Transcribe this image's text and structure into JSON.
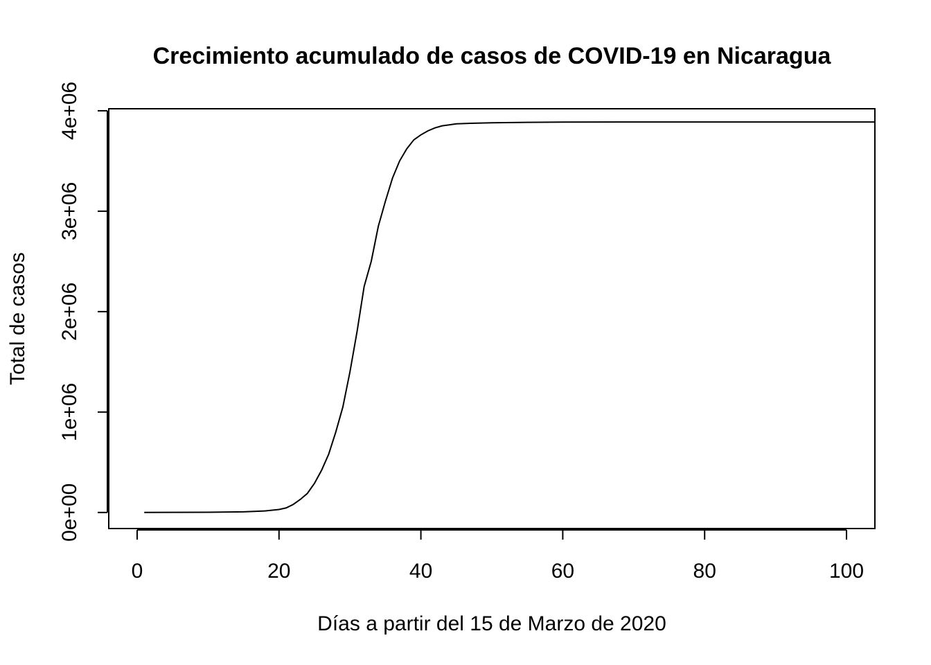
{
  "chart_data": {
    "type": "line",
    "title": "Crecimiento acumulado de casos de COVID-19 en Nicaragua",
    "xlabel": "Días a partir del 15 de Marzo de 2020",
    "ylabel": "Total de casos",
    "xlim": [
      -4,
      104
    ],
    "ylim": [
      -160000,
      4020000
    ],
    "x_ticks": [
      {
        "value": 0,
        "label": "0"
      },
      {
        "value": 20,
        "label": "20"
      },
      {
        "value": 40,
        "label": "40"
      },
      {
        "value": 60,
        "label": "60"
      },
      {
        "value": 80,
        "label": "80"
      },
      {
        "value": 100,
        "label": "100"
      }
    ],
    "y_ticks": [
      {
        "value": 0,
        "label": "0e+00"
      },
      {
        "value": 1000000,
        "label": "1e+06"
      },
      {
        "value": 2000000,
        "label": "2e+06"
      },
      {
        "value": 3000000,
        "label": "3e+06"
      },
      {
        "value": 4000000,
        "label": "4e+06"
      }
    ],
    "grid": false,
    "legend": "none",
    "series": [
      {
        "x": [
          1,
          5,
          10,
          15,
          18,
          20,
          21,
          22,
          23,
          24,
          25,
          26,
          27,
          28,
          29,
          30,
          31,
          32,
          33,
          34,
          35,
          36,
          37,
          38,
          39,
          40,
          41,
          42,
          43,
          44,
          45,
          47,
          50,
          55,
          60,
          70,
          80,
          90,
          100,
          104
        ],
        "y": [
          0,
          1000,
          2000,
          6000,
          15000,
          30000,
          45000,
          80000,
          130000,
          190000,
          290000,
          420000,
          580000,
          800000,
          1050000,
          1400000,
          1800000,
          2250000,
          2500000,
          2850000,
          3100000,
          3330000,
          3500000,
          3620000,
          3710000,
          3760000,
          3800000,
          3830000,
          3850000,
          3860000,
          3870000,
          3875000,
          3880000,
          3885000,
          3887000,
          3888000,
          3888000,
          3888000,
          3888000,
          3888000
        ],
        "color": "#000000"
      }
    ]
  }
}
